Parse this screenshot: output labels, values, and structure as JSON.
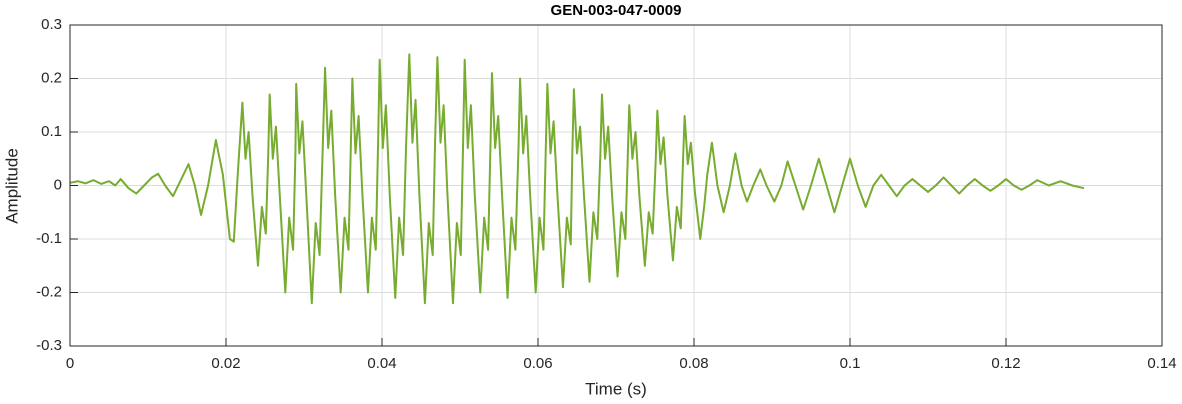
{
  "chart_data": {
    "type": "line",
    "title": "GEN-003-047-0009",
    "xlabel": "Time (s)",
    "ylabel": "Amplitude",
    "xlim": [
      0,
      0.14
    ],
    "xticks": [
      0,
      0.02,
      0.04,
      0.06,
      0.08,
      0.1,
      0.12,
      0.14
    ],
    "ylim": [
      -0.3,
      0.3
    ],
    "yticks": [
      -0.3,
      -0.2,
      -0.1,
      0,
      0.1,
      0.2,
      0.3
    ],
    "grid": true,
    "series": [
      {
        "color": "#77ac30",
        "x": [
          0,
          0.001,
          0.002,
          0.003,
          0.004,
          0.005,
          0.0058,
          0.0065,
          0.0075,
          0.0085,
          0.0095,
          0.0105,
          0.0113,
          0.0122,
          0.0132,
          0.0142,
          0.0152,
          0.016,
          0.0168,
          0.0177,
          0.0187,
          0.0196,
          0.0205,
          0.021,
          0.0215,
          0.0221,
          0.0225,
          0.0229,
          0.0234,
          0.0241,
          0.0246,
          0.0251,
          0.0254,
          0.0256,
          0.026,
          0.0264,
          0.0269,
          0.0276,
          0.0281,
          0.0286,
          0.0289,
          0.029,
          0.0294,
          0.0298,
          0.0303,
          0.031,
          0.0315,
          0.032,
          0.0324,
          0.0327,
          0.0331,
          0.0335,
          0.034,
          0.0347,
          0.0352,
          0.0357,
          0.036,
          0.0362,
          0.0366,
          0.037,
          0.0375,
          0.0382,
          0.0387,
          0.0392,
          0.0395,
          0.0397,
          0.0401,
          0.0405,
          0.041,
          0.0417,
          0.0422,
          0.0427,
          0.0431,
          0.0435,
          0.0439,
          0.0443,
          0.0448,
          0.0455,
          0.046,
          0.0465,
          0.0468,
          0.0471,
          0.0475,
          0.0479,
          0.0484,
          0.0491,
          0.0496,
          0.0501,
          0.0504,
          0.0506,
          0.051,
          0.0514,
          0.0519,
          0.0526,
          0.0531,
          0.0536,
          0.0539,
          0.0541,
          0.0545,
          0.0549,
          0.0554,
          0.0561,
          0.0566,
          0.0571,
          0.0575,
          0.0577,
          0.0581,
          0.0585,
          0.059,
          0.0597,
          0.0602,
          0.0607,
          0.061,
          0.0612,
          0.0616,
          0.062,
          0.0625,
          0.0632,
          0.0637,
          0.0642,
          0.0644,
          0.0646,
          0.065,
          0.0654,
          0.0659,
          0.0666,
          0.0671,
          0.0676,
          0.068,
          0.0682,
          0.0686,
          0.069,
          0.0695,
          0.0702,
          0.0707,
          0.0712,
          0.0715,
          0.0717,
          0.0721,
          0.0725,
          0.073,
          0.0737,
          0.0742,
          0.0747,
          0.0751,
          0.0753,
          0.0757,
          0.0761,
          0.0766,
          0.0773,
          0.0778,
          0.0783,
          0.0786,
          0.0788,
          0.0792,
          0.0796,
          0.0801,
          0.0808,
          0.0813,
          0.0817,
          0.0823,
          0.083,
          0.0838,
          0.0846,
          0.0853,
          0.0861,
          0.0868,
          0.0876,
          0.0885,
          0.0893,
          0.0903,
          0.0912,
          0.092,
          0.093,
          0.094,
          0.095,
          0.096,
          0.097,
          0.098,
          0.099,
          0.1,
          0.101,
          0.102,
          0.103,
          0.104,
          0.105,
          0.106,
          0.107,
          0.108,
          0.109,
          0.11,
          0.111,
          0.112,
          0.113,
          0.114,
          0.115,
          0.116,
          0.117,
          0.118,
          0.119,
          0.12,
          0.121,
          0.122,
          0.123,
          0.124,
          0.1255,
          0.127,
          0.1285,
          0.13
        ],
        "values": [
          0.005,
          0.008,
          0.004,
          0.01,
          0.003,
          0.008,
          0,
          0.012,
          -0.005,
          -0.015,
          0,
          0.015,
          0.022,
          0,
          -0.02,
          0.01,
          0.04,
          0,
          -0.055,
          0,
          0.085,
          0.02,
          -0.1,
          -0.105,
          0.02,
          0.155,
          0.05,
          0.1,
          -0.02,
          -0.15,
          -0.04,
          -0.09,
          0.05,
          0.17,
          0.05,
          0.11,
          -0.02,
          -0.2,
          -0.06,
          -0.12,
          0.06,
          0.19,
          0.06,
          0.12,
          -0.02,
          -0.22,
          -0.07,
          -0.13,
          0.07,
          0.22,
          0.07,
          0.14,
          -0.02,
          -0.2,
          -0.06,
          -0.12,
          0.07,
          0.2,
          0.06,
          0.13,
          -0.02,
          -0.2,
          -0.06,
          -0.12,
          0.08,
          0.235,
          0.07,
          0.15,
          -0.02,
          -0.21,
          -0.06,
          -0.13,
          0.08,
          0.245,
          0.08,
          0.16,
          -0.02,
          -0.22,
          -0.07,
          -0.13,
          0.08,
          0.24,
          0.08,
          0.15,
          -0.02,
          -0.22,
          -0.07,
          -0.13,
          0.08,
          0.235,
          0.07,
          0.15,
          -0.02,
          -0.2,
          -0.06,
          -0.12,
          0.07,
          0.21,
          0.07,
          0.13,
          -0.02,
          -0.21,
          -0.06,
          -0.12,
          0.07,
          0.2,
          0.06,
          0.13,
          -0.02,
          -0.2,
          -0.06,
          -0.12,
          0.07,
          0.19,
          0.06,
          0.12,
          -0.02,
          -0.19,
          -0.06,
          -0.11,
          0.06,
          0.18,
          0.06,
          0.11,
          -0.02,
          -0.18,
          -0.05,
          -0.1,
          0.06,
          0.17,
          0.05,
          0.11,
          -0.02,
          -0.17,
          -0.05,
          -0.1,
          0.05,
          0.15,
          0.05,
          0.1,
          -0.02,
          -0.15,
          -0.05,
          -0.09,
          0.05,
          0.14,
          0.04,
          0.09,
          -0.02,
          -0.14,
          -0.04,
          -0.08,
          0.05,
          0.13,
          0.04,
          0.08,
          -0.01,
          -0.1,
          -0.04,
          0.02,
          0.08,
          0,
          -0.05,
          0,
          0.06,
          0,
          -0.03,
          0,
          0.03,
          0,
          -0.03,
          0,
          0.045,
          0,
          -0.045,
          0,
          0.05,
          0,
          -0.05,
          0,
          0.05,
          0,
          -0.04,
          0,
          0.02,
          0,
          -0.02,
          0,
          0.012,
          0,
          -0.012,
          0,
          0.015,
          0,
          -0.015,
          0,
          0.012,
          0,
          -0.01,
          0,
          0.012,
          0,
          -0.008,
          0,
          0.01,
          0,
          0.008,
          0,
          -0.005
        ]
      }
    ]
  }
}
